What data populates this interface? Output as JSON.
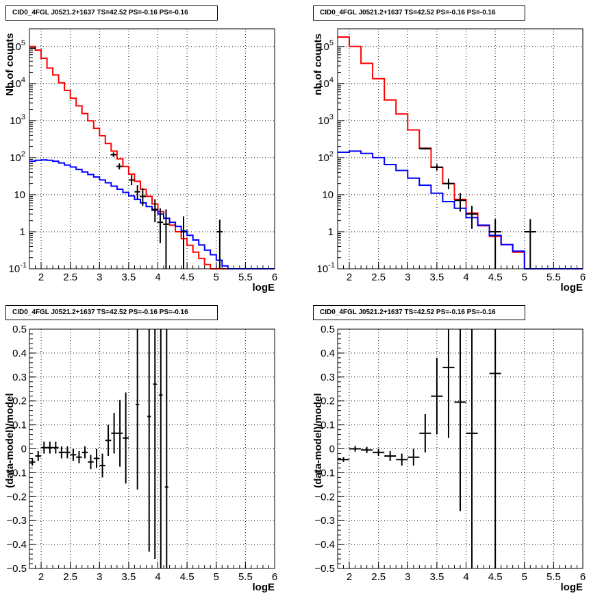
{
  "title": "CID0_4FGL J0521.2+1637 TS=42.52 PS=-0.16 PS=-0.16",
  "chart_data": [
    {
      "type": "line",
      "title": "CID0_4FGL J0521.2+1637 TS=42.52 PS=-0.16 PS=-0.16",
      "xlabel": "logE",
      "ylabel": "Nb of counts",
      "xlim": [
        1.8,
        6.0
      ],
      "ylim": [
        0.1,
        300000
      ],
      "yscale": "log",
      "grid": true,
      "xticks": [
        "2",
        "2.5",
        "3",
        "3.5",
        "4",
        "4.5",
        "5",
        "5.5",
        "6"
      ],
      "yticks": [
        "10^-1",
        "1",
        "10",
        "10^2",
        "10^3",
        "10^4",
        "10^5"
      ],
      "bin_edges": [
        1.8,
        1.9,
        2.0,
        2.1,
        2.2,
        2.3,
        2.4,
        2.5,
        2.6,
        2.7,
        2.8,
        2.9,
        3.0,
        3.1,
        3.2,
        3.3,
        3.4,
        3.5,
        3.6,
        3.7,
        3.8,
        3.9,
        4.0,
        4.1,
        4.2,
        4.3,
        4.4,
        4.5,
        4.6,
        4.7,
        4.8,
        4.9,
        5.0,
        5.1,
        5.2,
        5.3,
        5.4,
        5.5,
        5.6,
        5.7,
        5.8,
        5.9,
        6.0
      ],
      "series": [
        {
          "color": "#ff0000",
          "style": "step",
          "values": [
            100000,
            80000,
            48000,
            26000,
            17000,
            10500,
            6500,
            4000,
            2500,
            1550,
            980,
            620,
            390,
            240,
            150,
            93,
            58,
            36,
            23,
            14,
            9,
            5.6,
            3.5,
            2.3,
            1.5,
            1.0,
            0.65,
            0.43,
            0.28,
            0.19,
            0.13,
            0.1,
            0.1,
            0.1,
            0.1,
            0.1,
            0.1,
            0.1,
            0.1,
            0.1,
            0.1,
            0.1
          ]
        },
        {
          "color": "#0000ff",
          "style": "step",
          "values": [
            80,
            85,
            87,
            85,
            80,
            72,
            63,
            56,
            48,
            41,
            35,
            30,
            25,
            21,
            17,
            14,
            11.5,
            9.3,
            7.5,
            6.0,
            4.8,
            3.8,
            3.0,
            2.3,
            1.8,
            1.4,
            1.05,
            0.8,
            0.6,
            0.44,
            0.32,
            0.24,
            0.17,
            0.12,
            0.1,
            0.1,
            0.1,
            0.1,
            0.1,
            0.1,
            0.1,
            0.1
          ]
        },
        {
          "color": "#000000",
          "style": "errorbar",
          "points": [
            {
              "x": 1.86,
              "y": 90000,
              "xerr": 0.05,
              "ylo": 88000,
              "yhi": 92000
            },
            {
              "x": 3.24,
              "y": 120,
              "xerr": 0.05,
              "ylo": 105,
              "yhi": 138
            },
            {
              "x": 3.34,
              "y": 58,
              "xerr": 0.05,
              "ylo": 48,
              "yhi": 70
            },
            {
              "x": 3.55,
              "y": 25,
              "xerr": 0.05,
              "ylo": 18,
              "yhi": 34
            },
            {
              "x": 3.65,
              "y": 12,
              "xerr": 0.05,
              "ylo": 7.5,
              "yhi": 18
            },
            {
              "x": 3.74,
              "y": 9,
              "xerr": 0.05,
              "ylo": 5,
              "yhi": 15
            },
            {
              "x": 3.95,
              "y": 4,
              "xerr": 0.05,
              "ylo": 1.8,
              "yhi": 7.5
            },
            {
              "x": 4.04,
              "y": 1.8,
              "xerr": 0.05,
              "ylo": 0.5,
              "yhi": 4.3
            },
            {
              "x": 4.14,
              "y": 1.6,
              "xerr": 0.05,
              "ylo": 0.1,
              "yhi": 4
            },
            {
              "x": 4.44,
              "y": 1,
              "xerr": 0.05,
              "ylo": 0.1,
              "yhi": 2.6
            },
            {
              "x": 5.06,
              "y": 1,
              "xerr": 0.05,
              "ylo": 0.1,
              "yhi": 2.1
            }
          ]
        }
      ]
    },
    {
      "type": "line",
      "title": "CID0_4FGL J0521.2+1637 TS=42.52 PS=-0.16 PS=-0.16",
      "xlabel": "logE",
      "ylabel": "nb of counts",
      "xlim": [
        1.8,
        6.0
      ],
      "ylim": [
        0.1,
        300000
      ],
      "yscale": "log",
      "grid": true,
      "xticks": [
        "2",
        "2.5",
        "3",
        "3.5",
        "4",
        "4.5",
        "5",
        "5.5",
        "6"
      ],
      "yticks": [
        "10^-1",
        "1",
        "10",
        "10^2",
        "10^3",
        "10^4",
        "10^5"
      ],
      "bin_edges": [
        1.8,
        2.0,
        2.2,
        2.4,
        2.6,
        2.8,
        3.0,
        3.2,
        3.4,
        3.6,
        3.8,
        4.0,
        4.2,
        4.4,
        4.6,
        4.8,
        5.0,
        5.2,
        5.4,
        5.6,
        5.8,
        6.0
      ],
      "series": [
        {
          "color": "#ff0000",
          "style": "step",
          "values": [
            180000,
            100000,
            35000,
            13500,
            3600,
            1500,
            560,
            180,
            55,
            20,
            7.5,
            3.2,
            1.45,
            0.75,
            0.45,
            0.28,
            0.1,
            0.1,
            0.1,
            0.1,
            0.1
          ]
        },
        {
          "color": "#0000ff",
          "style": "step",
          "values": [
            140,
            150,
            130,
            100,
            65,
            45,
            28,
            18,
            11,
            6.5,
            4.3,
            2.4,
            1.5,
            0.8,
            0.45,
            0.3,
            0.1,
            0.1,
            0.1,
            0.1,
            0.1
          ]
        },
        {
          "color": "#000000",
          "style": "errorbar",
          "points": [
            {
              "x": 3.3,
              "y": 175,
              "xerr": 0.1,
              "ylo": 165,
              "yhi": 185
            },
            {
              "x": 3.5,
              "y": 55,
              "xerr": 0.1,
              "ylo": 45,
              "yhi": 66
            },
            {
              "x": 3.7,
              "y": 20,
              "xerr": 0.1,
              "ylo": 14,
              "yhi": 27
            },
            {
              "x": 3.9,
              "y": 7,
              "xerr": 0.1,
              "ylo": 3.5,
              "yhi": 11
            },
            {
              "x": 4.1,
              "y": 3,
              "xerr": 0.1,
              "ylo": 1.2,
              "yhi": 5
            },
            {
              "x": 4.5,
              "y": 1,
              "xerr": 0.1,
              "ylo": 0.1,
              "yhi": 2.2
            },
            {
              "x": 5.1,
              "y": 1,
              "xerr": 0.1,
              "ylo": 0.1,
              "yhi": 2.2
            }
          ]
        }
      ]
    },
    {
      "type": "scatter",
      "title": "CID0_4FGL J0521.2+1637 TS=42.52 PS=-0.16 PS=-0.16",
      "xlabel": "logE",
      "ylabel": "(data-model)/model",
      "xlim": [
        1.8,
        6.0
      ],
      "ylim": [
        -0.5,
        0.5
      ],
      "grid": true,
      "xticks": [
        "2",
        "2.5",
        "3",
        "3.5",
        "4",
        "4.5",
        "5",
        "5.5",
        "6"
      ],
      "yticks": [
        "-0.5",
        "-0.4",
        "-0.3",
        "-0.2",
        "-0.1",
        "0",
        "0.1",
        "0.2",
        "0.3",
        "0.4",
        "0.5"
      ],
      "series": [
        {
          "color": "#000000",
          "style": "errorbar",
          "points": [
            {
              "x": 1.85,
              "y": -0.055,
              "xerr": 0.05,
              "ylo": -0.07,
              "yhi": -0.04
            },
            {
              "x": 1.95,
              "y": -0.03,
              "xerr": 0.05,
              "ylo": -0.05,
              "yhi": -0.01
            },
            {
              "x": 2.05,
              "y": 0.005,
              "xerr": 0.05,
              "ylo": -0.02,
              "yhi": 0.03
            },
            {
              "x": 2.15,
              "y": 0.005,
              "xerr": 0.05,
              "ylo": -0.02,
              "yhi": 0.03
            },
            {
              "x": 2.25,
              "y": 0.005,
              "xerr": 0.05,
              "ylo": -0.02,
              "yhi": 0.03
            },
            {
              "x": 2.35,
              "y": -0.015,
              "xerr": 0.05,
              "ylo": -0.04,
              "yhi": 0.01
            },
            {
              "x": 2.45,
              "y": -0.015,
              "xerr": 0.05,
              "ylo": -0.04,
              "yhi": 0.01
            },
            {
              "x": 2.55,
              "y": -0.025,
              "xerr": 0.05,
              "ylo": -0.05,
              "yhi": 0.0
            },
            {
              "x": 2.65,
              "y": -0.035,
              "xerr": 0.05,
              "ylo": -0.06,
              "yhi": -0.01
            },
            {
              "x": 2.75,
              "y": -0.015,
              "xerr": 0.05,
              "ylo": -0.04,
              "yhi": 0.01
            },
            {
              "x": 2.85,
              "y": -0.055,
              "xerr": 0.05,
              "ylo": -0.085,
              "yhi": -0.025
            },
            {
              "x": 2.95,
              "y": -0.04,
              "xerr": 0.05,
              "ylo": -0.08,
              "yhi": 0.0
            },
            {
              "x": 3.05,
              "y": -0.07,
              "xerr": 0.05,
              "ylo": -0.12,
              "yhi": -0.02
            },
            {
              "x": 3.15,
              "y": 0.035,
              "xerr": 0.05,
              "ylo": -0.03,
              "yhi": 0.1
            },
            {
              "x": 3.25,
              "y": 0.065,
              "xerr": 0.05,
              "ylo": -0.02,
              "yhi": 0.15
            },
            {
              "x": 3.35,
              "y": 0.065,
              "xerr": 0.05,
              "ylo": -0.075,
              "yhi": 0.205
            },
            {
              "x": 3.45,
              "y": 0.045,
              "xerr": 0.05,
              "ylo": -0.145,
              "yhi": 0.235
            },
            {
              "x": 3.65,
              "y": 0.185,
              "xerr": 0.03,
              "ylo": -0.17,
              "yhi": 0.5
            },
            {
              "x": 3.85,
              "y": 0.135,
              "xerr": 0.03,
              "ylo": -0.43,
              "yhi": 0.5
            },
            {
              "x": 3.95,
              "y": 0.27,
              "xerr": 0.03,
              "ylo": -0.46,
              "yhi": 0.5
            },
            {
              "x": 4.05,
              "y": 0.225,
              "xerr": 0.03,
              "ylo": -0.5,
              "yhi": 0.5
            },
            {
              "x": 4.15,
              "y": -0.16,
              "xerr": 0.03,
              "ylo": -0.5,
              "yhi": 0.5
            }
          ]
        }
      ]
    },
    {
      "type": "scatter",
      "title": "CID0_4FGL J0521.2+1637 TS=42.52 PS=-0.16 PS=-0.16",
      "xlabel": "logE",
      "ylabel": "(data-model)/model",
      "xlim": [
        1.8,
        6.0
      ],
      "ylim": [
        -0.5,
        0.5
      ],
      "grid": true,
      "xticks": [
        "2",
        "2.5",
        "3",
        "3.5",
        "4",
        "4.5",
        "5",
        "5.5",
        "6"
      ],
      "yticks": [
        "-0.5",
        "-0.4",
        "-0.3",
        "-0.2",
        "-0.1",
        "0",
        "0.1",
        "0.2",
        "0.3",
        "0.4",
        "0.5"
      ],
      "series": [
        {
          "color": "#000000",
          "style": "errorbar",
          "points": [
            {
              "x": 1.9,
              "y": -0.045,
              "xerr": 0.1,
              "ylo": -0.055,
              "yhi": -0.035
            },
            {
              "x": 2.1,
              "y": 0.0,
              "xerr": 0.1,
              "ylo": -0.012,
              "yhi": 0.012
            },
            {
              "x": 2.3,
              "y": -0.005,
              "xerr": 0.1,
              "ylo": -0.018,
              "yhi": 0.008
            },
            {
              "x": 2.5,
              "y": -0.015,
              "xerr": 0.1,
              "ylo": -0.03,
              "yhi": 0.0
            },
            {
              "x": 2.7,
              "y": -0.03,
              "xerr": 0.1,
              "ylo": -0.05,
              "yhi": -0.01
            },
            {
              "x": 2.9,
              "y": -0.045,
              "xerr": 0.1,
              "ylo": -0.07,
              "yhi": -0.02
            },
            {
              "x": 3.1,
              "y": -0.035,
              "xerr": 0.1,
              "ylo": -0.07,
              "yhi": 0.0
            },
            {
              "x": 3.3,
              "y": 0.065,
              "xerr": 0.1,
              "ylo": -0.015,
              "yhi": 0.145
            },
            {
              "x": 3.5,
              "y": 0.22,
              "xerr": 0.1,
              "ylo": 0.06,
              "yhi": 0.38
            },
            {
              "x": 3.7,
              "y": 0.34,
              "xerr": 0.1,
              "ylo": 0.045,
              "yhi": 0.5
            },
            {
              "x": 3.9,
              "y": 0.195,
              "xerr": 0.1,
              "ylo": -0.26,
              "yhi": 0.5
            },
            {
              "x": 4.1,
              "y": 0.065,
              "xerr": 0.1,
              "ylo": -0.5,
              "yhi": 0.5
            },
            {
              "x": 4.5,
              "y": 0.315,
              "xerr": 0.1,
              "ylo": -0.5,
              "yhi": 0.5
            }
          ]
        }
      ]
    }
  ]
}
